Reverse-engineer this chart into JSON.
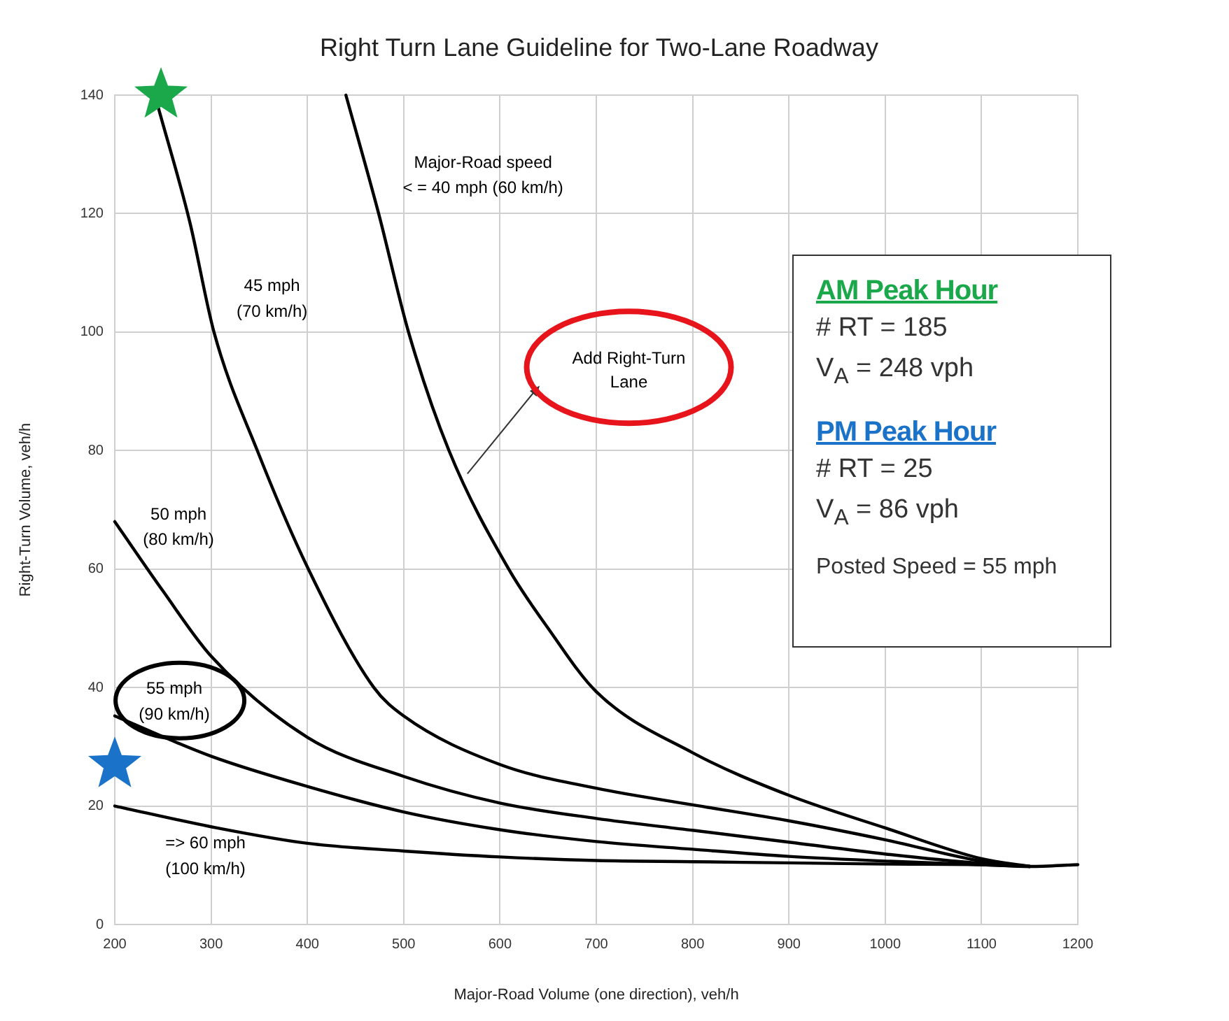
{
  "chart_data": {
    "type": "line",
    "title": "Right Turn Lane Guideline for Two-Lane Roadway",
    "xlabel": "Major-Road Volume (one direction), veh/h",
    "ylabel": "Right-Turn Volume, veh/h",
    "xlim": [
      200,
      1200
    ],
    "ylim": [
      0,
      140
    ],
    "xticks": [
      200,
      300,
      400,
      500,
      600,
      700,
      800,
      900,
      1000,
      1100,
      1200
    ],
    "yticks": [
      0,
      20,
      40,
      60,
      80,
      100,
      120,
      140
    ],
    "grid": true,
    "marker": "none",
    "line_style": "solid",
    "series": [
      {
        "name": "Major-Road speed\n< = 40 mph (60 km/h)",
        "color": "#000000",
        "x": [
          440,
          474,
          505,
          547,
          609,
          650,
          700,
          800,
          900,
          1000,
          1100,
          1150
        ],
        "values": [
          140,
          120,
          100,
          80,
          60,
          50,
          39.3,
          29,
          21.8,
          16.3,
          11.1,
          9.8
        ]
      },
      {
        "name": "45 mph\n(70 km/h)",
        "color": "#000000",
        "x": [
          245,
          278,
          303,
          348,
          401,
          469,
          500,
          600,
          700,
          800,
          900,
          1000,
          1100,
          1150
        ],
        "values": [
          138,
          118.5,
          100,
          80,
          60,
          40,
          35.2,
          27,
          23,
          20.2,
          17.5,
          14.3,
          10.7,
          9.8
        ]
      },
      {
        "name": "50 mph\n(80 km/h)",
        "color": "#000000",
        "x": [
          200,
          250,
          300,
          400,
          500,
          600,
          700,
          800,
          900,
          1000,
          1100,
          1150
        ],
        "values": [
          68,
          56.3,
          45.3,
          31.6,
          25,
          20.5,
          17.9,
          15.9,
          13.9,
          11.9,
          10.3,
          9.8
        ]
      },
      {
        "name": "55 mph\n(90 km/h)",
        "color": "#000000",
        "x": [
          200,
          300,
          400,
          500,
          600,
          700,
          800,
          900,
          1000,
          1100,
          1150
        ],
        "values": [
          35.2,
          28.4,
          23.3,
          19,
          16,
          14,
          12.7,
          11.5,
          10.7,
          10.1,
          9.8
        ]
      },
      {
        "name": "=> 60 mph\n(100 km/h)",
        "color": "#000000",
        "x": [
          200,
          300,
          400,
          500,
          600,
          700,
          800,
          900,
          1000,
          1100,
          1150,
          1200
        ],
        "values": [
          20,
          16.5,
          13.7,
          12.4,
          11.4,
          10.8,
          10.6,
          10.4,
          10.2,
          10.1,
          9.8,
          10.1
        ]
      },
      {
        "type": "scatter",
        "marker": "star",
        "color": "#1aa84a",
        "x": [
          248
        ],
        "values": [
          140
        ]
      },
      {
        "type": "scatter",
        "marker": "star",
        "color": "#1a73c8",
        "x": [
          200
        ],
        "values": [
          27
        ]
      }
    ],
    "annotations": [
      "Add Right-Turn\nLane",
      "AM Peak Hour",
      "# RT = 185",
      "V$_{A}$ = 248 vph",
      "PM Peak Hour",
      "# RT = 25",
      "V$_{A}$ = 86 vph",
      "Posted Speed = 55 mph"
    ]
  }
}
